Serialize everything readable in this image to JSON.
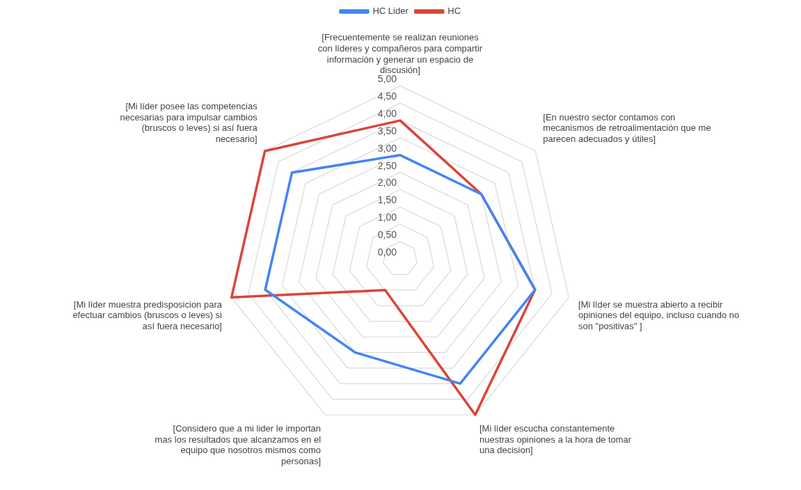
{
  "chart_data": {
    "type": "radar",
    "categories": [
      "[Frecuentemente se realizan reuniones con líderes y compañeros para compartir información y generar un espacio de discusión]",
      "[En nuestro sector contamos con mecanismos de retroalimentación que me parecen adecuados y útiles]",
      "[Mi líder se muestra abierto a recibir opiniones del equipo, incluso cuando no son \"positivas\" ]",
      "[Mi líder escucha constantemente nuestras opiniones a la hora de tomar una decision]",
      "[Considero que a mi lider le importan mas los resultados que alcanzamos en el equipo que nosotros mismos como personas]",
      "[Mi líder muestra predisposicion para efectuar cambios (bruscos o leves) si así fuera necesario]",
      "[Mi líder posee las competencias necesarias para impulsar cambios (bruscos o leves) si así fuera necesario]"
    ],
    "series": [
      {
        "name": "HC Lider",
        "color": "#4285f4",
        "values": [
          3,
          3,
          4,
          4,
          3,
          4,
          4
        ]
      },
      {
        "name": "HC",
        "color": "#db4437",
        "values": [
          4,
          3,
          4,
          5,
          1,
          5,
          5
        ]
      }
    ],
    "ylim": [
      0,
      5
    ],
    "yticks": [
      {
        "value": 0,
        "label": "0,00"
      },
      {
        "value": 0.5,
        "label": "0,50"
      },
      {
        "value": 1,
        "label": "1,00"
      },
      {
        "value": 1.5,
        "label": "1,50"
      },
      {
        "value": 2,
        "label": "2,00"
      },
      {
        "value": 2.5,
        "label": "2,50"
      },
      {
        "value": 3,
        "label": "3,00"
      },
      {
        "value": 3.5,
        "label": "3,50"
      },
      {
        "value": 4,
        "label": "4,00"
      },
      {
        "value": 4.5,
        "label": "4,50"
      },
      {
        "value": 5,
        "label": "5,00"
      }
    ],
    "grid": true,
    "legend": "top",
    "marker": "none"
  }
}
